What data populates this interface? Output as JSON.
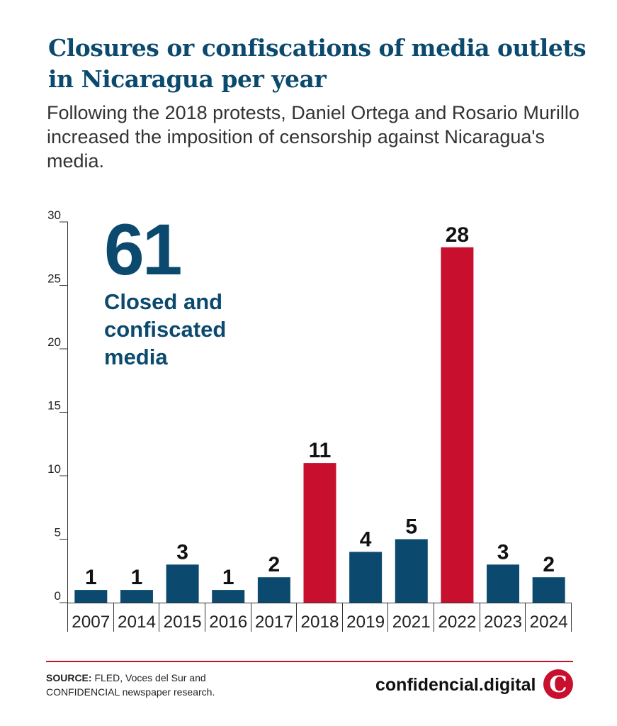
{
  "header": {
    "title": "Closures or confiscations of media outlets in Nicaragua per year",
    "subtitle": "Following the 2018 protests, Daniel Ortega and Rosario Murillo increased the imposition of censorship against Nicaragua's media."
  },
  "callout": {
    "number": "61",
    "label": "Closed and confiscated media"
  },
  "chart_data": {
    "type": "bar",
    "categories": [
      "2007",
      "2014",
      "2015",
      "2016",
      "2017",
      "2018",
      "2019",
      "2021",
      "2022",
      "2023",
      "2024"
    ],
    "values": [
      1,
      1,
      3,
      1,
      2,
      11,
      4,
      5,
      28,
      3,
      2
    ],
    "highlight": [
      "2018",
      "2022"
    ],
    "ylim": [
      0,
      30
    ],
    "yticks": [
      0,
      5,
      10,
      15,
      20,
      25,
      30
    ],
    "data_labels": true,
    "colors": {
      "default": "#0b4a6e",
      "highlight": "#c8102e",
      "axis": "#333333"
    }
  },
  "footer": {
    "source_label": "SOURCE:",
    "source_line1": "FLED, Voces del Sur and",
    "source_name": "CONFIDENCIAL",
    "source_line2": "newspaper research.",
    "brand": "confidencial.digital",
    "logo_letter": "C"
  }
}
